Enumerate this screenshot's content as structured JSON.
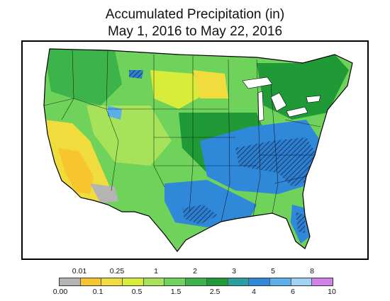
{
  "header": {
    "title": "Accumulated Precipitation (in)",
    "subtitle": "May 1, 2016 to May 22, 2016"
  },
  "legend": {
    "colors": [
      "#b4b4b4",
      "#f7c62c",
      "#f0dc3c",
      "#d8ec3a",
      "#a6e25a",
      "#6fd25a",
      "#3cb44b",
      "#1f9a37",
      "#2a9fa0",
      "#2f88d8",
      "#5aaeea",
      "#a0d2f4",
      "#d282e6"
    ],
    "top_labels": [
      "0.01",
      "0.25",
      "1",
      "2",
      "3",
      "5",
      "8"
    ],
    "bottom_labels": [
      "0.00",
      "0.1",
      "0.5",
      "1.5",
      "2.5",
      "4",
      "6",
      "10"
    ]
  },
  "map_regions": {
    "pacific_northwest": "green",
    "california_nevada": "yellow-orange",
    "great_plains": "light-green",
    "lower_mississippi_southeast": "blue",
    "gulf_coast_texas": "blue",
    "mid_atlantic": "hatched-dark-blue"
  }
}
